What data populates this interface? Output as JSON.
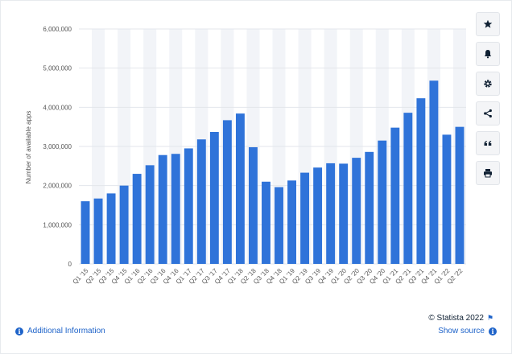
{
  "chart_data": {
    "type": "bar",
    "categories": [
      "Q1 '15",
      "Q2 '15",
      "Q3 '15",
      "Q4 '15",
      "Q1 '16",
      "Q2 '16",
      "Q3 '16",
      "Q4 '16",
      "Q1 '17",
      "Q2 '17",
      "Q3 '17",
      "Q4 '17",
      "Q1 '18",
      "Q2 '18",
      "Q3 '18",
      "Q4 '18",
      "Q1 '19",
      "Q2 '19",
      "Q3 '19",
      "Q4 '19",
      "Q1 '20",
      "Q2 '20",
      "Q3 '20",
      "Q4 '20",
      "Q1 '21",
      "Q2 '21",
      "Q3 '21",
      "Q4 '21",
      "Q1 '22",
      "Q2 '22"
    ],
    "values": [
      1600000,
      1670000,
      1800000,
      2000000,
      2300000,
      2520000,
      2780000,
      2810000,
      2950000,
      3180000,
      3370000,
      3670000,
      3840000,
      2980000,
      2100000,
      1960000,
      2130000,
      2330000,
      2460000,
      2570000,
      2560000,
      2710000,
      2860000,
      3150000,
      3480000,
      3860000,
      4230000,
      4680000,
      3300000,
      3500000
    ],
    "ylabel": "Number of available apps",
    "ylim": [
      0,
      6000000
    ],
    "yticks": [
      0,
      1000000,
      2000000,
      3000000,
      4000000,
      5000000,
      6000000
    ],
    "ytick_labels": [
      "0",
      "1,000,000",
      "2,000,000",
      "3,000,000",
      "4,000,000",
      "5,000,000",
      "6,000,000"
    ],
    "bar_color": "#2f73d9",
    "band_color": "#f2f4f8",
    "grid": true,
    "legend": "none"
  },
  "toolbar": {
    "buttons": [
      {
        "name": "favorite",
        "icon": "star-icon"
      },
      {
        "name": "notification",
        "icon": "bell-icon"
      },
      {
        "name": "settings",
        "icon": "gear-icon"
      },
      {
        "name": "share",
        "icon": "share-icon"
      },
      {
        "name": "cite",
        "icon": "quote-icon"
      },
      {
        "name": "print",
        "icon": "printer-icon"
      }
    ]
  },
  "footer": {
    "credit": "© Statista 2022",
    "additional_info": "Additional Information",
    "show_source": "Show source",
    "accent_color": "#1e63c9"
  }
}
